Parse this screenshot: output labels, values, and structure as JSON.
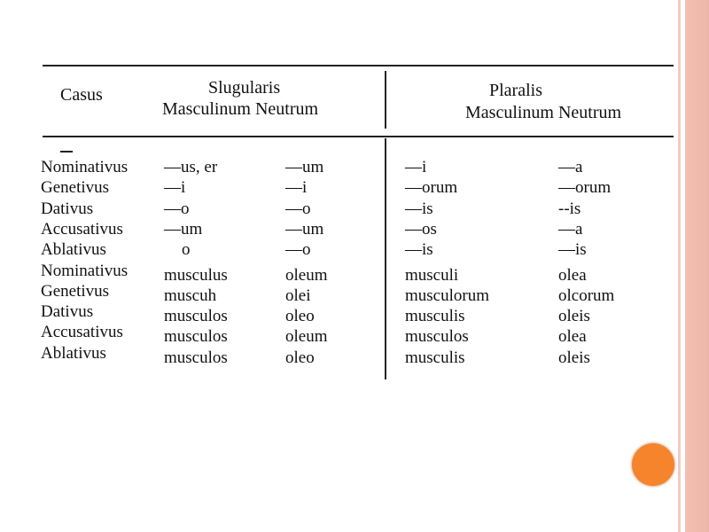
{
  "header": {
    "casus": "Casus",
    "singular_title": "Slugularis",
    "singular_genders": "Masculinum Neutrum",
    "plural_title": "Plaralis",
    "plural_genders": "Masculinum Neutrum"
  },
  "rows": [
    {
      "case": "Nominativus",
      "sg_m": "—us, er",
      "sg_n": "—um",
      "pl_m": "—i",
      "pl_n": "—a"
    },
    {
      "case": "Genetivus",
      "sg_m": "—i",
      "sg_n": "—i",
      "pl_m": "—orum",
      "pl_n": "—orum"
    },
    {
      "case": "Dativus",
      "sg_m": "—o",
      "sg_n": "—o",
      "pl_m": "—is",
      "pl_n": "--is"
    },
    {
      "case": "Accusativus",
      "sg_m": "—um",
      "sg_n": "—um",
      "pl_m": "—os",
      "pl_n": "—a"
    },
    {
      "case": "Ablativus",
      "sg_m": "o",
      "sg_n": "—o",
      "pl_m": "—is",
      "pl_n": "—is"
    },
    {
      "case": "Nominativus",
      "sg_m": "musculus",
      "sg_n": "oleum",
      "pl_m": "musculi",
      "pl_n": "olea"
    },
    {
      "case": "Genetivus",
      "sg_m": "muscuh",
      "sg_n": "olei",
      "pl_m": "musculorum",
      "pl_n": "olcorum"
    },
    {
      "case": "Dativus",
      "sg_m": "musculos",
      "sg_n": "oleo",
      "pl_m": "musculis",
      "pl_n": "oleis"
    },
    {
      "case": "Accusativus",
      "sg_m": "musculos",
      "sg_n": "oleum",
      "pl_m": "musculos",
      "pl_n": "olea"
    },
    {
      "case": "Ablativus",
      "sg_m": "musculos",
      "sg_n": "oleo",
      "pl_m": "musculis",
      "pl_n": "oleis"
    }
  ],
  "colors": {
    "accent_dot": "#f5842c",
    "edge_band": "#f3bfb2"
  }
}
